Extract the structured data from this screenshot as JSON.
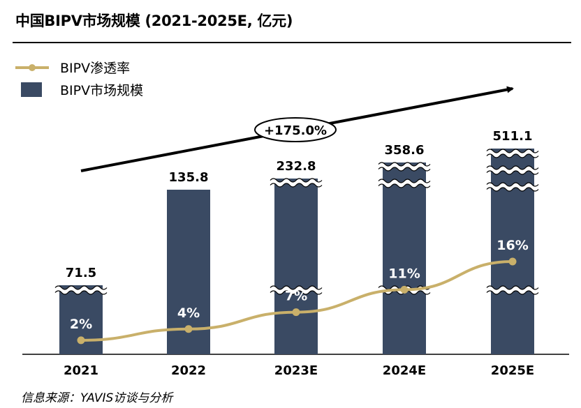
{
  "title": "中国BIPV市场规模 (2021-2025E, 亿元)",
  "source": "信息来源：YAVIS访谈与分析",
  "colors": {
    "bar": "#3a4a63",
    "line": "#c9b06a",
    "text": "#000000",
    "label_on_bar": "#ffffff"
  },
  "chart_data": {
    "type": "bar",
    "categories": [
      "2021",
      "2022",
      "2023E",
      "2024E",
      "2025E"
    ],
    "series": [
      {
        "name": "BIPV市场规模",
        "type": "bar",
        "values": [
          71.5,
          135.8,
          232.8,
          358.6,
          511.1
        ],
        "labels": [
          "71.5",
          "135.8",
          "232.8",
          "358.6",
          "511.1"
        ],
        "broken_axis": [
          true,
          false,
          true,
          true,
          true
        ]
      },
      {
        "name": "BIPV渗透率",
        "type": "line",
        "values": [
          2,
          4,
          7,
          11,
          16
        ],
        "labels": [
          "2%",
          "4%",
          "7%",
          "11%",
          "16%"
        ],
        "unit": "%"
      }
    ],
    "legend": {
      "position": "top-left",
      "entries": [
        "BIPV渗透率",
        "BIPV市场规模"
      ]
    },
    "annotation": {
      "text": "+175.0%",
      "type": "growth-arrow"
    },
    "grid": false
  }
}
